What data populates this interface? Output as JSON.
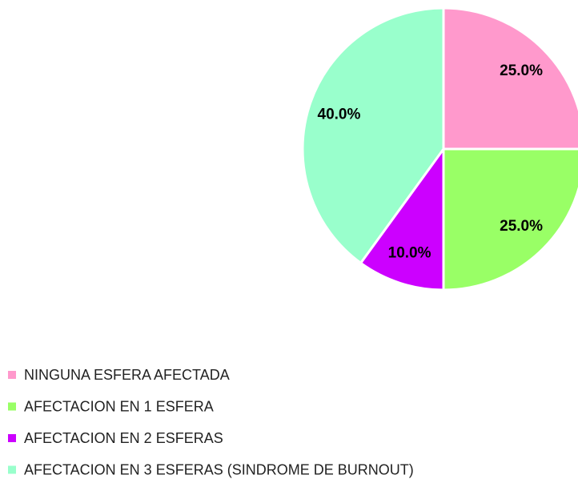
{
  "chart_data": {
    "type": "pie",
    "categories": [
      "NINGUNA ESFERA AFECTADA",
      "AFECTACION EN 1 ESFERA",
      "AFECTACION EN 2 ESFERAS",
      "AFECTACION EN 3 ESFERAS (SINDROME DE BURNOUT)"
    ],
    "values": [
      25,
      25,
      10,
      40
    ],
    "value_labels": [
      "25.0%",
      "25.0%",
      "10.0%",
      "40.0%"
    ],
    "colors": [
      "#ff99cc",
      "#99ff66",
      "#cc00ff",
      "#99ffcc"
    ]
  }
}
